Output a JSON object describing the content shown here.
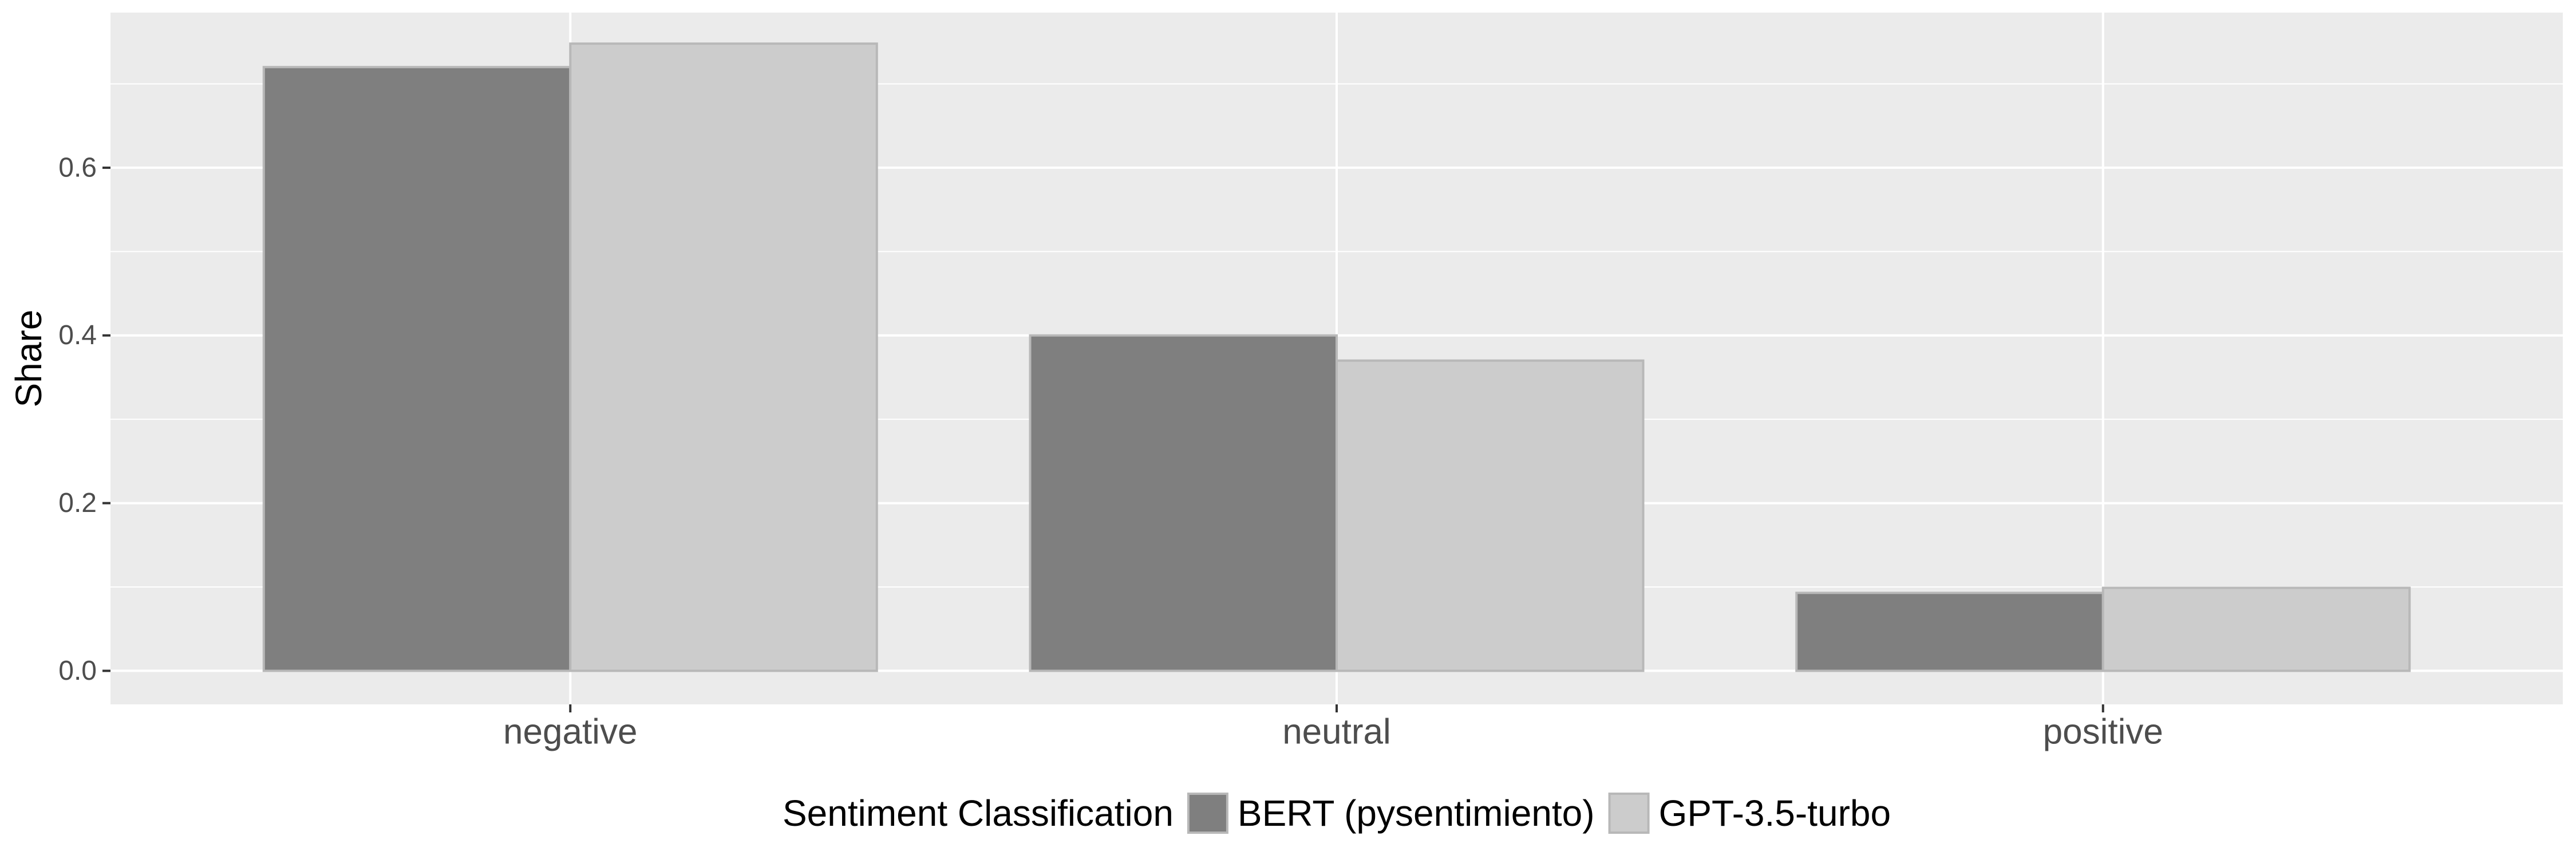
{
  "chart_data": {
    "type": "bar",
    "title": "",
    "xlabel": "",
    "ylabel": "Share",
    "categories": [
      "negative",
      "neutral",
      "positive"
    ],
    "series": [
      {
        "name": "BERT (pysentimiento)",
        "values": [
          0.72,
          0.4,
          0.093
        ],
        "color": "#7f7f7f"
      },
      {
        "name": "GPT-3.5-turbo",
        "values": [
          0.748,
          0.37,
          0.099
        ],
        "color": "#cccccc"
      }
    ],
    "ylim": [
      -0.04,
      0.785
    ],
    "yticks": [
      0.0,
      0.2,
      0.4,
      0.6
    ],
    "ytick_labels": [
      "0.0",
      "0.2",
      "0.4",
      "0.6"
    ],
    "grid": true,
    "legend": {
      "title": "Sentiment Classification",
      "position": "bottom"
    },
    "panel_background": "#ebebeb",
    "grid_color": "#ffffff",
    "bar_outline": "#b8b8b8"
  }
}
